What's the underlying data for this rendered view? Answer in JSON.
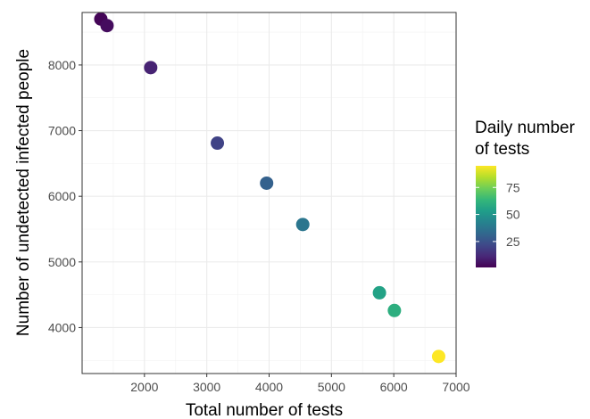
{
  "chart_data": {
    "type": "scatter",
    "xlabel": "Total number of tests",
    "ylabel": "Number of undetected infected people",
    "xlim": [
      1000,
      7000
    ],
    "ylim": [
      3300,
      8800
    ],
    "x_ticks": [
      2000,
      3000,
      4000,
      5000,
      6000,
      7000
    ],
    "y_ticks": [
      4000,
      5000,
      6000,
      7000,
      8000
    ],
    "x_tick_labels": [
      "2000",
      "3000",
      "4000",
      "5000",
      "6000",
      "7000"
    ],
    "y_tick_labels": [
      "4000",
      "5000",
      "6000",
      "7000",
      "8000"
    ],
    "grid": true,
    "color_scale": "viridis",
    "legend": {
      "title_line1": "Daily number",
      "title_line2": "of tests",
      "placement": "right",
      "range": [
        1,
        95
      ],
      "ticks": [
        25,
        50,
        75
      ],
      "tick_labels": [
        "25",
        "50",
        "75"
      ]
    },
    "points": [
      {
        "x": 1300,
        "y": 8700,
        "daily": 2
      },
      {
        "x": 1400,
        "y": 8600,
        "daily": 4
      },
      {
        "x": 2100,
        "y": 7960,
        "daily": 10
      },
      {
        "x": 3170,
        "y": 6810,
        "daily": 20
      },
      {
        "x": 3960,
        "y": 6200,
        "daily": 30
      },
      {
        "x": 4540,
        "y": 5570,
        "daily": 38
      },
      {
        "x": 5770,
        "y": 4530,
        "daily": 55
      },
      {
        "x": 6010,
        "y": 4260,
        "daily": 60
      },
      {
        "x": 6720,
        "y": 3560,
        "daily": 95
      }
    ]
  }
}
